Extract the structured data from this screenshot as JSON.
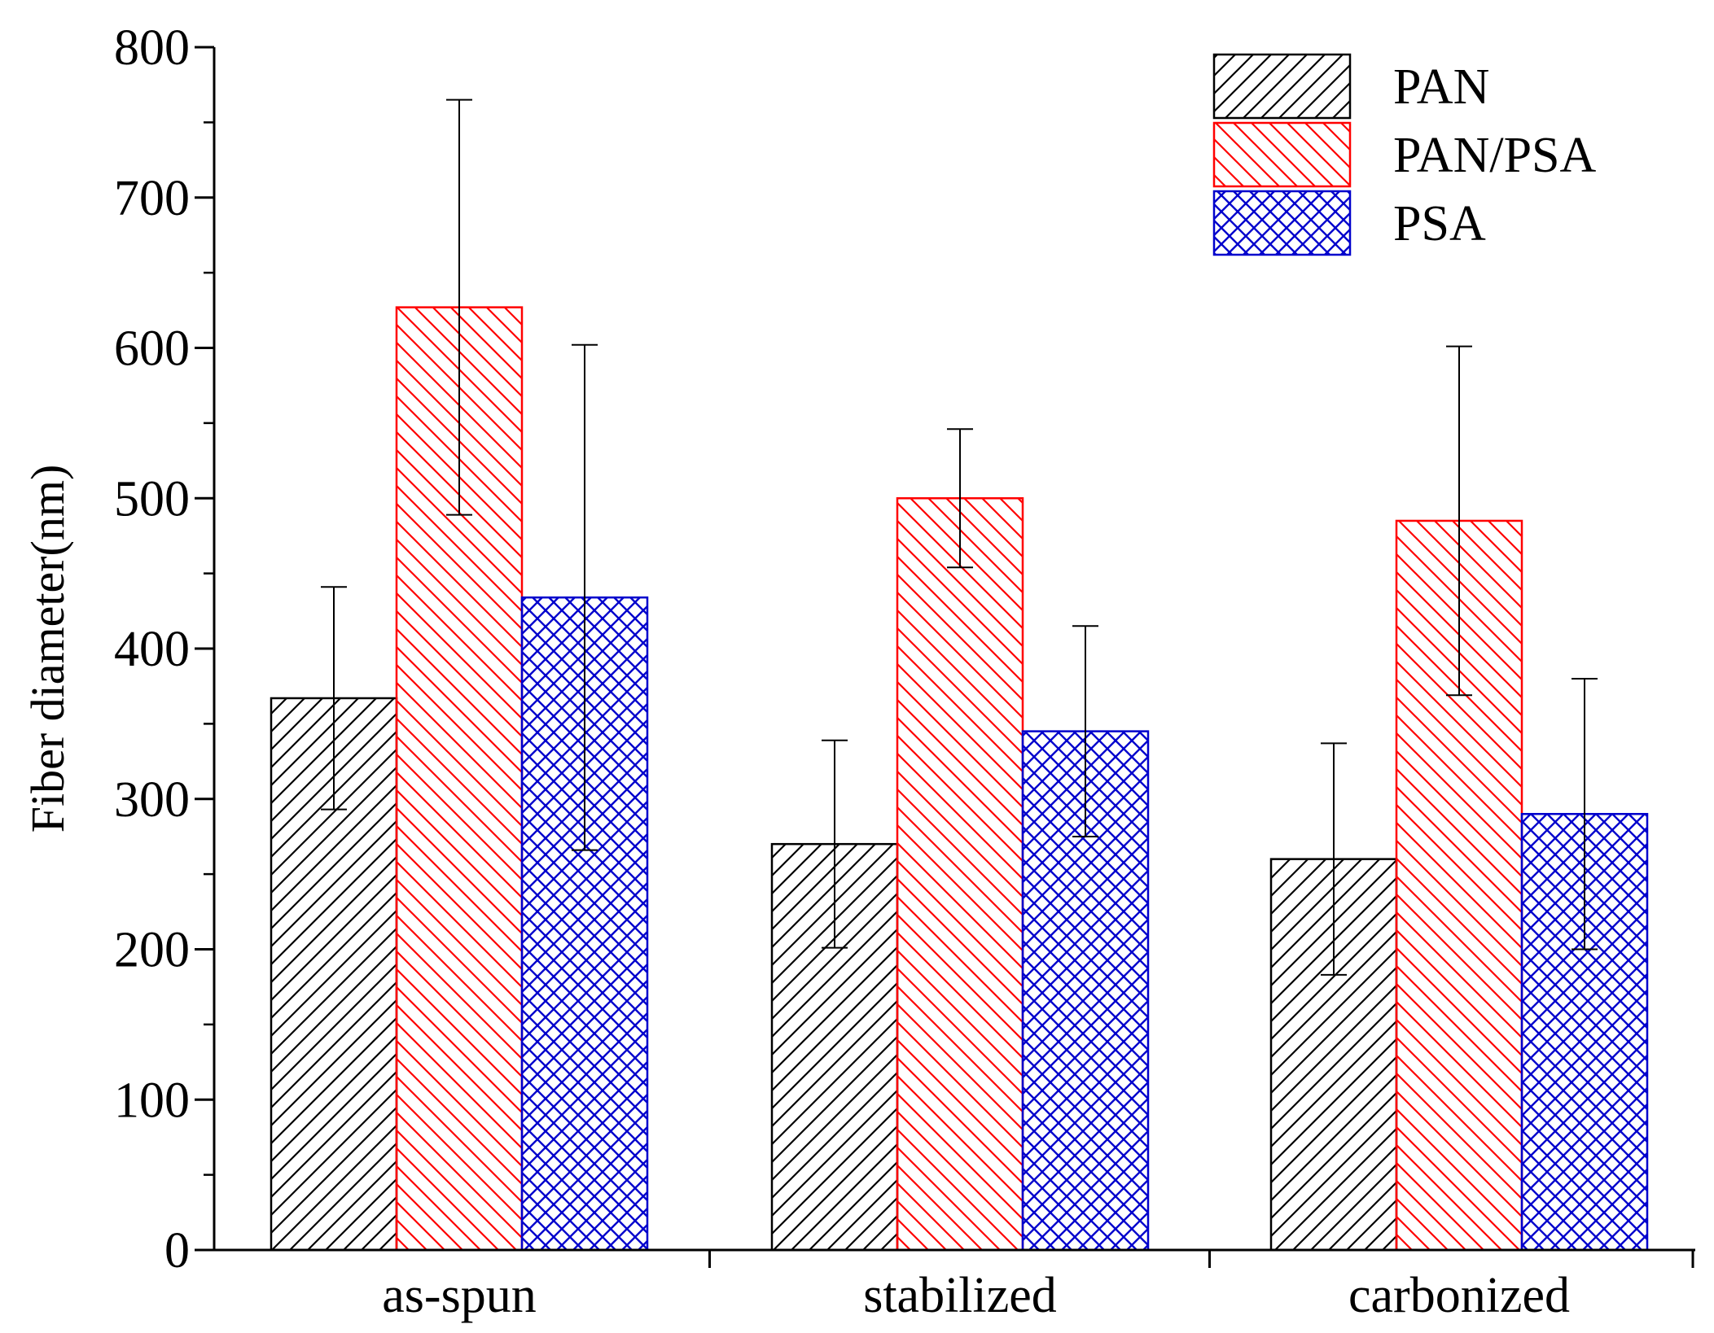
{
  "chart_data": {
    "type": "bar",
    "title": "",
    "xlabel": "",
    "ylabel": "Fiber diameter(nm)",
    "ylim": [
      0,
      800
    ],
    "yticks": [
      0,
      100,
      200,
      300,
      400,
      500,
      600,
      700,
      800
    ],
    "ytick_labels": [
      "0",
      "100",
      "200",
      "300",
      "400",
      "500",
      "600",
      "700",
      "800"
    ],
    "categories": [
      "as-spun",
      "stabilized",
      "carbonized"
    ],
    "series": [
      {
        "name": "PAN",
        "color": "#000000",
        "pattern": "hatch-forward",
        "values": [
          367,
          270,
          260
        ],
        "errors": [
          74,
          69,
          77
        ]
      },
      {
        "name": "PAN/PSA",
        "color": "#ff0000",
        "pattern": "hatch-backward",
        "values": [
          627,
          500,
          485
        ],
        "errors": [
          138,
          46,
          116
        ]
      },
      {
        "name": "PSA",
        "color": "#0000cc",
        "pattern": "crosshatch",
        "values": [
          434,
          345,
          290
        ],
        "errors": [
          168,
          70,
          90
        ]
      }
    ],
    "legend": "top-right",
    "grid": false
  }
}
